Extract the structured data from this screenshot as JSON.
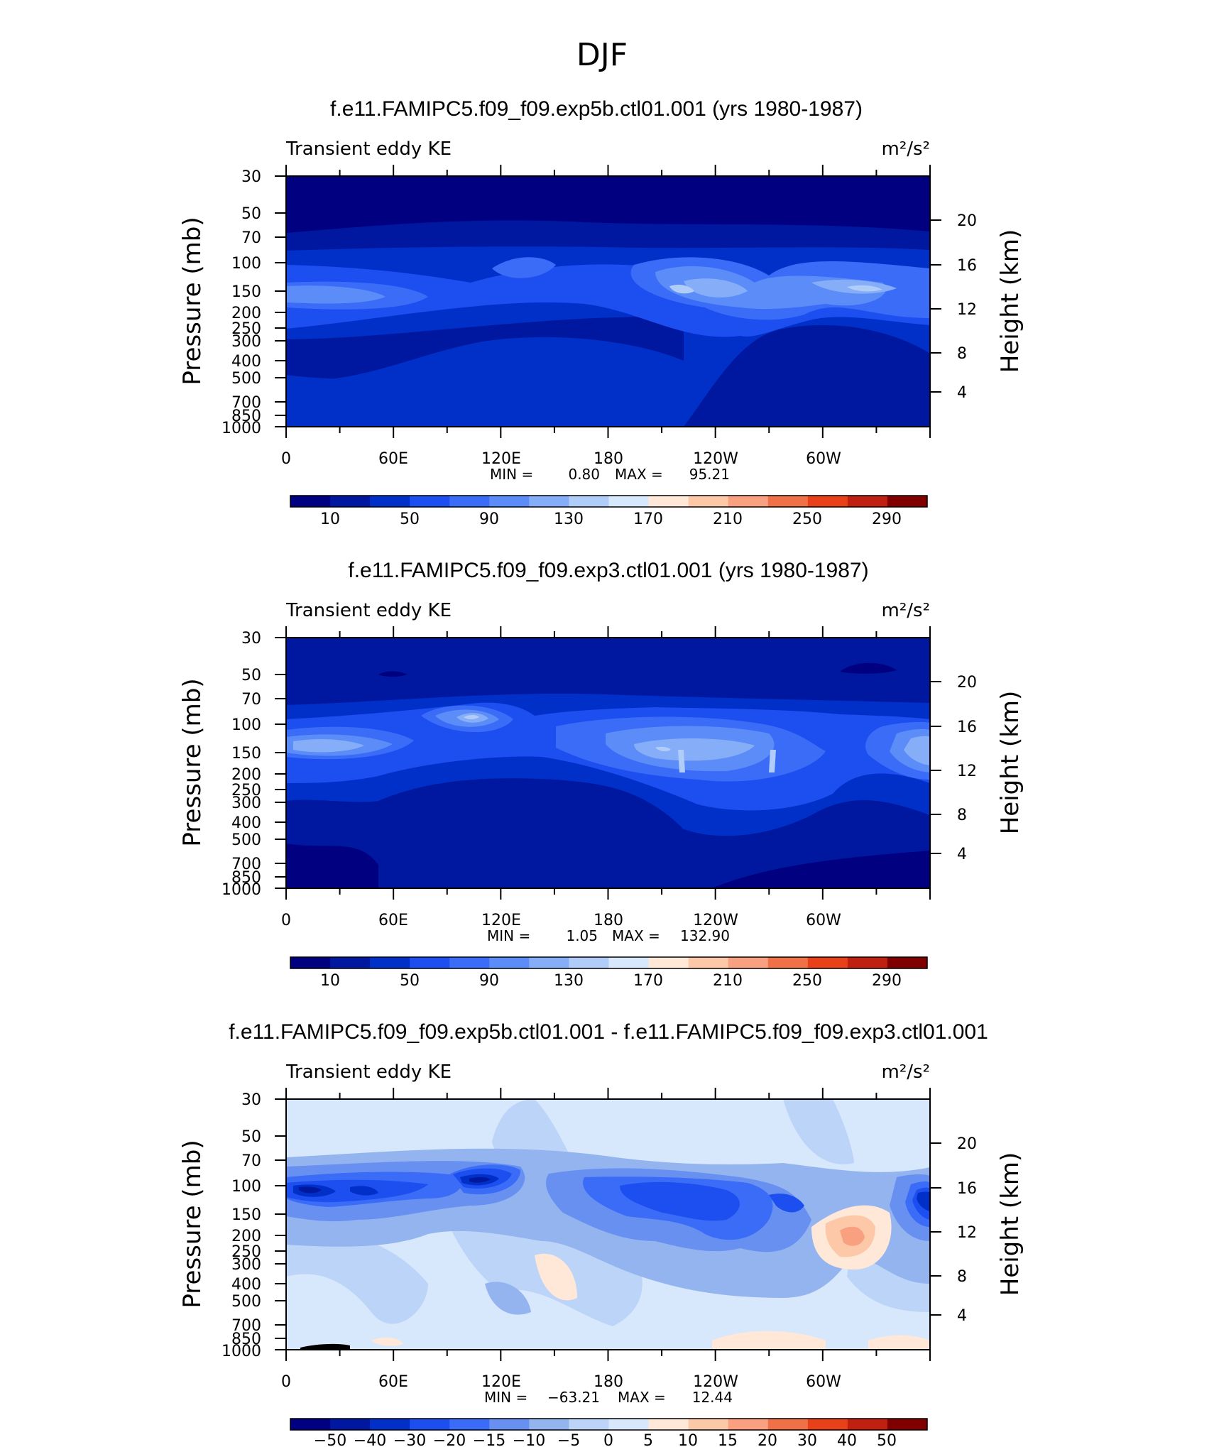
{
  "figure": {
    "season_title": "DJF"
  },
  "colors": {
    "ke_levels": [
      "#000080",
      "#0018A0",
      "#0030C8",
      "#1C4EF0",
      "#3A6CF8",
      "#5C8CF8",
      "#86AEF8",
      "#B0CCF8",
      "#D8E8FC",
      "#FFE8D8",
      "#FCC8A8",
      "#F8A080",
      "#F07048",
      "#E84018",
      "#C02010",
      "#800000"
    ],
    "diff_levels": [
      "#000080",
      "#0018A0",
      "#0030C8",
      "#1C4EF0",
      "#3A6CF8",
      "#6890F0",
      "#94B4F0",
      "#BCD4F8",
      "#D8E8FC",
      "#FFE8D8",
      "#FCC8A8",
      "#F8A080",
      "#F07048",
      "#E84018",
      "#C02010",
      "#800000"
    ]
  },
  "chart_data": [
    {
      "type": "heatmap",
      "title": "f.e11.FAMIPC5.f09_f09.exp5b.ctl01.001 (yrs 1980-1987)",
      "left_label": "Transient eddy KE",
      "units": "m²/s²",
      "ylabel": "Pressure (mb)",
      "ylabel_right": "Height (km)",
      "x_tick_labels": [
        "0",
        "60E",
        "120E",
        "180",
        "120W",
        "60W"
      ],
      "y_tick_labels": [
        "30",
        "50",
        "70",
        "100",
        "150",
        "200",
        "250",
        "300",
        "400",
        "500",
        "700",
        "850",
        "1000"
      ],
      "y2_tick_labels": [
        "20",
        "16",
        "12",
        "8",
        "4"
      ],
      "min_label": "MIN =",
      "min_value": "0.80",
      "max_label": "MAX =",
      "max_value": "95.21",
      "colorbar_labels": [
        "10",
        "50",
        "90",
        "130",
        "170",
        "210",
        "250",
        "290"
      ]
    },
    {
      "type": "heatmap",
      "title": "f.e11.FAMIPC5.f09_f09.exp3.ctl01.001 (yrs 1980-1987)",
      "left_label": "Transient eddy KE",
      "units": "m²/s²",
      "ylabel": "Pressure (mb)",
      "ylabel_right": "Height (km)",
      "x_tick_labels": [
        "0",
        "60E",
        "120E",
        "180",
        "120W",
        "60W"
      ],
      "y_tick_labels": [
        "30",
        "50",
        "70",
        "100",
        "150",
        "200",
        "250",
        "300",
        "400",
        "500",
        "700",
        "850",
        "1000"
      ],
      "y2_tick_labels": [
        "20",
        "16",
        "12",
        "8",
        "4"
      ],
      "min_label": "MIN =",
      "min_value": "1.05",
      "max_label": "MAX =",
      "max_value": "132.90",
      "colorbar_labels": [
        "10",
        "50",
        "90",
        "130",
        "170",
        "210",
        "250",
        "290"
      ]
    },
    {
      "type": "heatmap",
      "title": "f.e11.FAMIPC5.f09_f09.exp5b.ctl01.001 - f.e11.FAMIPC5.f09_f09.exp3.ctl01.001",
      "left_label": "Transient eddy KE",
      "units": "m²/s²",
      "ylabel": "Pressure (mb)",
      "ylabel_right": "Height (km)",
      "x_tick_labels": [
        "0",
        "60E",
        "120E",
        "180",
        "120W",
        "60W"
      ],
      "y_tick_labels": [
        "30",
        "50",
        "70",
        "100",
        "150",
        "200",
        "250",
        "300",
        "400",
        "500",
        "700",
        "850",
        "1000"
      ],
      "y2_tick_labels": [
        "20",
        "16",
        "12",
        "8",
        "4"
      ],
      "min_label": "MIN =",
      "min_value": "−63.21",
      "max_label": "MAX =",
      "max_value": "12.44",
      "colorbar_labels": [
        "−50",
        "−40",
        "−30",
        "−20",
        "−15",
        "−10",
        "−5",
        "0",
        "5",
        "10",
        "15",
        "20",
        "30",
        "40",
        "50"
      ]
    }
  ]
}
